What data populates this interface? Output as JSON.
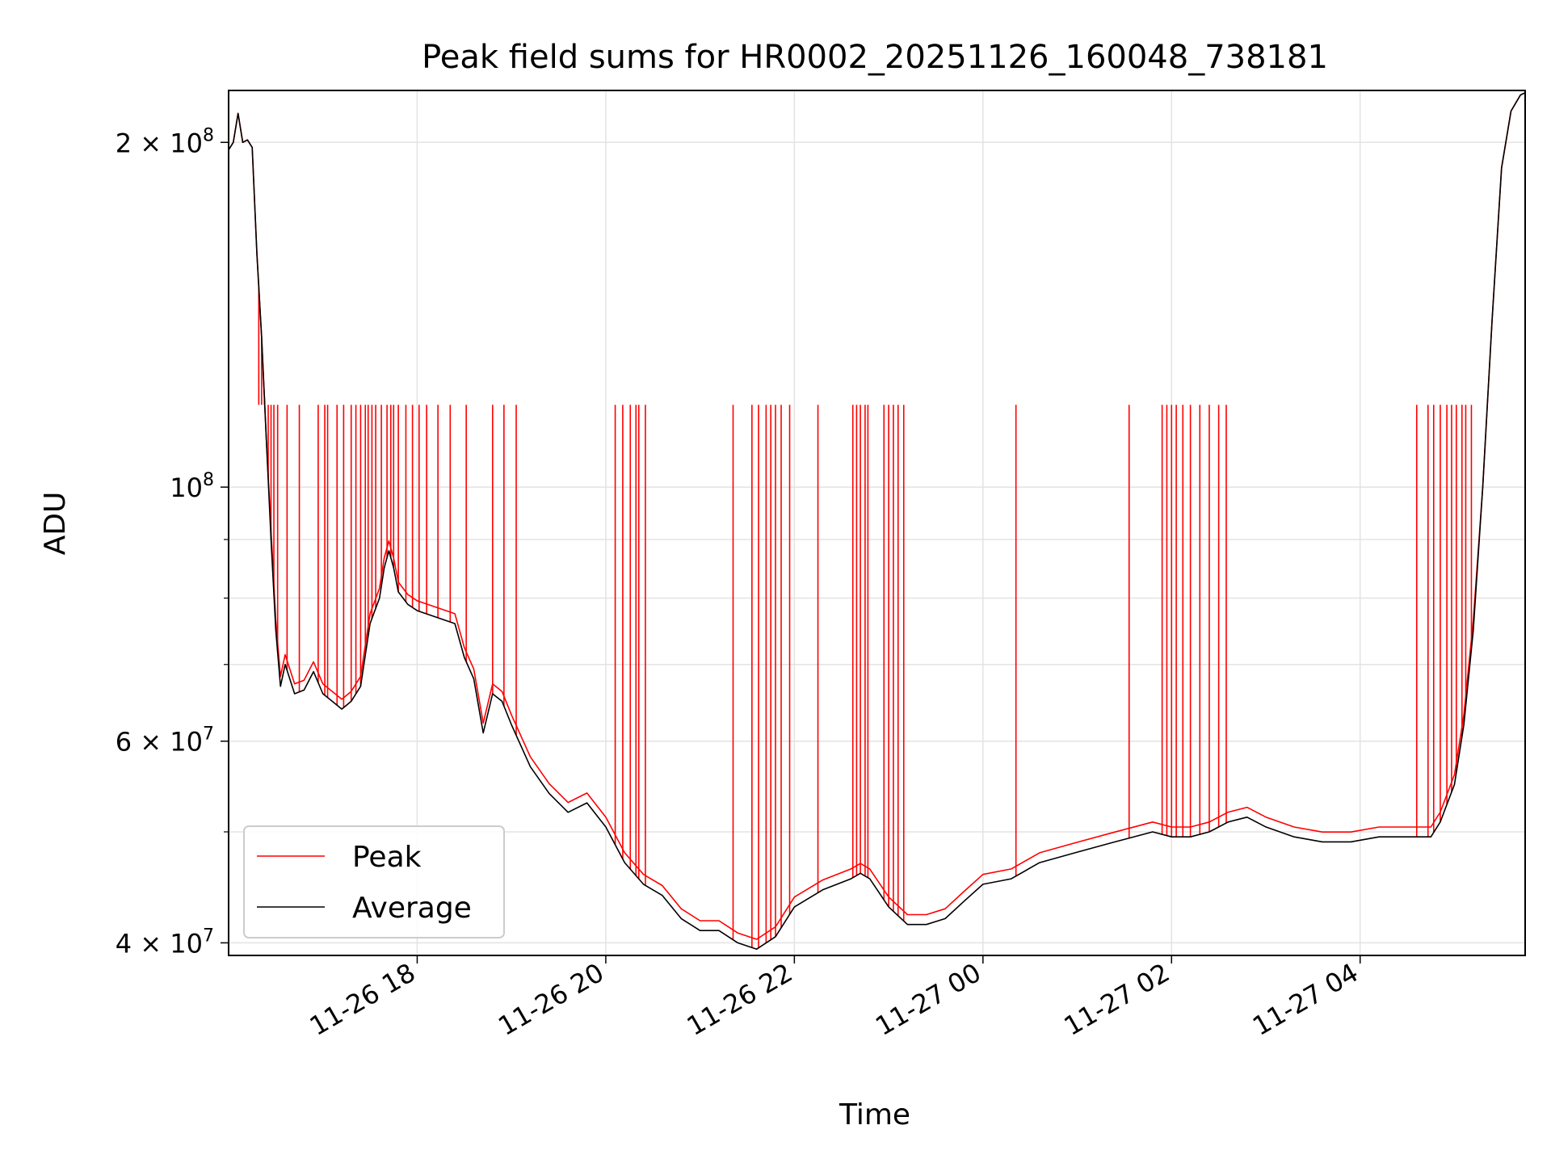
{
  "chart_data": {
    "type": "line",
    "title": "Peak field sums for HR0002_20251126_160048_738181",
    "xlabel": "Time",
    "ylabel": "ADU",
    "yscale": "log",
    "ylim": [
      39000000,
      222000000
    ],
    "xlim_hours": [
      16.0,
      29.75
    ],
    "grid": true,
    "x_ticks": [
      {
        "label": "11-26 18",
        "hour": 18
      },
      {
        "label": "11-26 20",
        "hour": 20
      },
      {
        "label": "11-26 22",
        "hour": 22
      },
      {
        "label": "11-27 00",
        "hour": 24
      },
      {
        "label": "11-27 02",
        "hour": 26
      },
      {
        "label": "11-27 04",
        "hour": 28
      }
    ],
    "y_major_ticks": [
      {
        "value": 40000000,
        "base": "4",
        "exp": "7"
      },
      {
        "value": 60000000,
        "base": "6",
        "exp": "7"
      },
      {
        "value": 100000000,
        "base": "",
        "exp": "8"
      },
      {
        "value": 200000000,
        "base": "2",
        "exp": "8"
      }
    ],
    "y_minor_ticks": [
      50000000,
      70000000,
      80000000,
      90000000
    ],
    "legend": {
      "position": "lower-left"
    },
    "series": [
      {
        "name": "Average",
        "color": "#000000",
        "points": [
          [
            16.0,
            197000000
          ],
          [
            16.05,
            200000000
          ],
          [
            16.1,
            212000000
          ],
          [
            16.15,
            200000000
          ],
          [
            16.2,
            201000000
          ],
          [
            16.25,
            198000000
          ],
          [
            16.3,
            160000000
          ],
          [
            16.35,
            135000000
          ],
          [
            16.4,
            110000000
          ],
          [
            16.45,
            90000000
          ],
          [
            16.5,
            75000000
          ],
          [
            16.55,
            67000000
          ],
          [
            16.6,
            70000000
          ],
          [
            16.7,
            66000000
          ],
          [
            16.8,
            66500000
          ],
          [
            16.9,
            69000000
          ],
          [
            17.0,
            66000000
          ],
          [
            17.1,
            65000000
          ],
          [
            17.2,
            64000000
          ],
          [
            17.3,
            65000000
          ],
          [
            17.4,
            67000000
          ],
          [
            17.5,
            76000000
          ],
          [
            17.6,
            80000000
          ],
          [
            17.65,
            85000000
          ],
          [
            17.7,
            88000000
          ],
          [
            17.75,
            85000000
          ],
          [
            17.8,
            81000000
          ],
          [
            17.9,
            79000000
          ],
          [
            18.0,
            78000000
          ],
          [
            18.2,
            77000000
          ],
          [
            18.4,
            76000000
          ],
          [
            18.5,
            71000000
          ],
          [
            18.6,
            68000000
          ],
          [
            18.7,
            61000000
          ],
          [
            18.8,
            66000000
          ],
          [
            18.9,
            65000000
          ],
          [
            19.0,
            62000000
          ],
          [
            19.2,
            57000000
          ],
          [
            19.4,
            54000000
          ],
          [
            19.6,
            52000000
          ],
          [
            19.8,
            53000000
          ],
          [
            20.0,
            50500000
          ],
          [
            20.2,
            47000000
          ],
          [
            20.4,
            45000000
          ],
          [
            20.6,
            44000000
          ],
          [
            20.8,
            42000000
          ],
          [
            21.0,
            41000000
          ],
          [
            21.2,
            41000000
          ],
          [
            21.4,
            40000000
          ],
          [
            21.6,
            39500000
          ],
          [
            21.8,
            40500000
          ],
          [
            22.0,
            43000000
          ],
          [
            22.3,
            44500000
          ],
          [
            22.6,
            45500000
          ],
          [
            22.7,
            46000000
          ],
          [
            22.8,
            45500000
          ],
          [
            23.0,
            43000000
          ],
          [
            23.2,
            41500000
          ],
          [
            23.4,
            41500000
          ],
          [
            23.6,
            42000000
          ],
          [
            23.8,
            43500000
          ],
          [
            24.0,
            45000000
          ],
          [
            24.3,
            45500000
          ],
          [
            24.6,
            47000000
          ],
          [
            25.0,
            48000000
          ],
          [
            25.4,
            49000000
          ],
          [
            25.8,
            50000000
          ],
          [
            26.0,
            49500000
          ],
          [
            26.2,
            49500000
          ],
          [
            26.4,
            50000000
          ],
          [
            26.6,
            51000000
          ],
          [
            26.8,
            51500000
          ],
          [
            27.0,
            50500000
          ],
          [
            27.3,
            49500000
          ],
          [
            27.6,
            49000000
          ],
          [
            27.9,
            49000000
          ],
          [
            28.2,
            49500000
          ],
          [
            28.5,
            49500000
          ],
          [
            28.75,
            49500000
          ],
          [
            28.85,
            51000000
          ],
          [
            29.0,
            55000000
          ],
          [
            29.1,
            62000000
          ],
          [
            29.2,
            75000000
          ],
          [
            29.3,
            100000000
          ],
          [
            29.4,
            140000000
          ],
          [
            29.5,
            190000000
          ],
          [
            29.6,
            213000000
          ],
          [
            29.7,
            220000000
          ],
          [
            29.75,
            221000000
          ]
        ]
      },
      {
        "name": "Peak",
        "color": "#ff0000",
        "spike_level": 118000000,
        "spike_hours": [
          16.32,
          16.35,
          16.38,
          16.42,
          16.45,
          16.48,
          16.52,
          16.62,
          16.75,
          16.95,
          17.02,
          17.05,
          17.15,
          17.22,
          17.3,
          17.35,
          17.4,
          17.45,
          17.48,
          17.52,
          17.56,
          17.62,
          17.68,
          17.72,
          17.75,
          17.8,
          17.88,
          17.95,
          18.02,
          18.1,
          18.22,
          18.35,
          18.52,
          18.8,
          18.92,
          19.05,
          20.1,
          20.18,
          20.26,
          20.32,
          20.35,
          20.42,
          21.35,
          21.55,
          21.62,
          21.7,
          21.75,
          21.8,
          21.86,
          21.95,
          22.25,
          22.62,
          22.66,
          22.7,
          22.75,
          22.78,
          22.95,
          23.0,
          23.05,
          23.1,
          23.16,
          24.35,
          25.55,
          25.9,
          25.95,
          26.0,
          26.05,
          26.12,
          26.2,
          26.3,
          26.4,
          26.5,
          26.58,
          28.6,
          28.72,
          28.78,
          28.85,
          28.92,
          28.97,
          29.02,
          29.08,
          29.12,
          29.18
        ]
      }
    ]
  }
}
